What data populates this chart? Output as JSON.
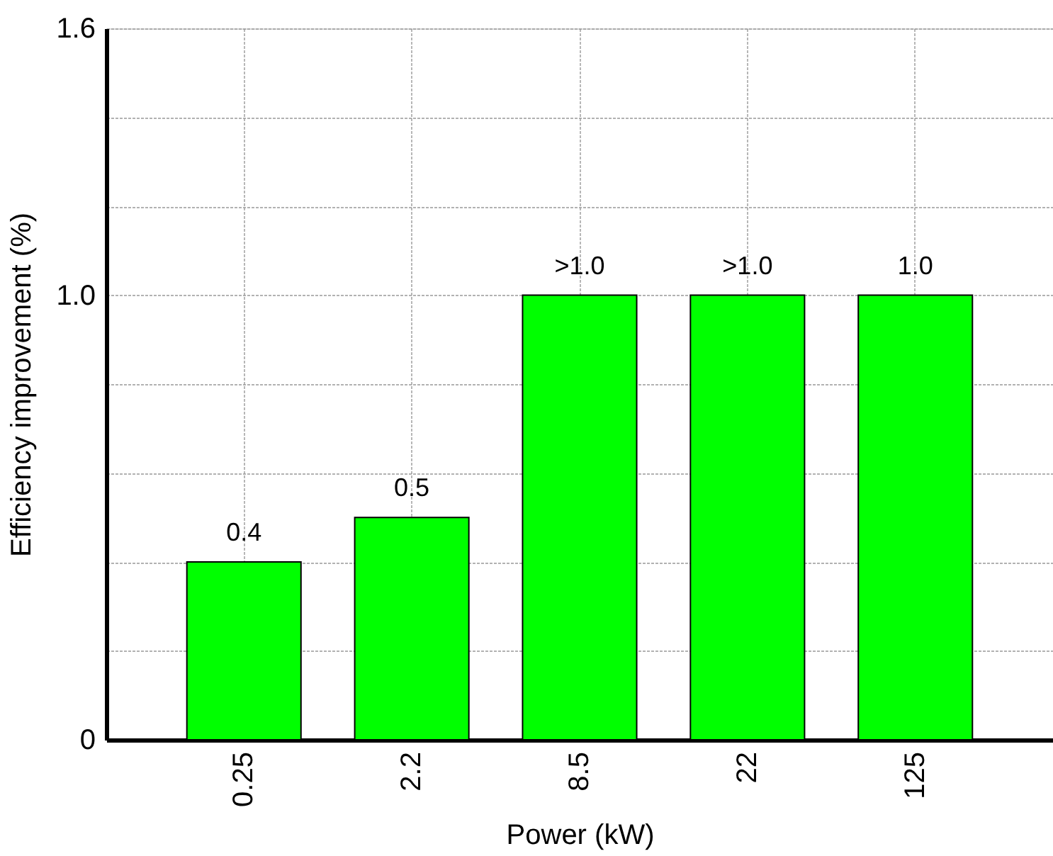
{
  "chart_data": {
    "type": "bar",
    "xlabel": "Power (kW)",
    "ylabel": "Efficiency improvement (%)",
    "categories": [
      "0.25",
      "2.2",
      "8.5",
      "22",
      "125"
    ],
    "values": [
      0.4,
      0.5,
      1.0,
      1.0,
      1.0
    ],
    "value_labels": [
      "0.4",
      "0.5",
      ">1.0",
      ">1.0",
      "1.0"
    ],
    "color": "#00ff00",
    "ylim": [
      0,
      1.6
    ],
    "yticks": [
      0,
      {
        "value": 0.2,
        "label": null
      },
      {
        "value": 0.4,
        "label": null
      },
      {
        "value": 0.6,
        "label": null
      },
      {
        "value": 0.8,
        "label": null
      },
      {
        "value": 1.0,
        "label": "1.0"
      },
      {
        "value": 1.2,
        "label": null
      },
      {
        "value": 1.4,
        "label": null
      },
      {
        "value": 1.6,
        "label": "1.6"
      }
    ],
    "grid": true
  }
}
